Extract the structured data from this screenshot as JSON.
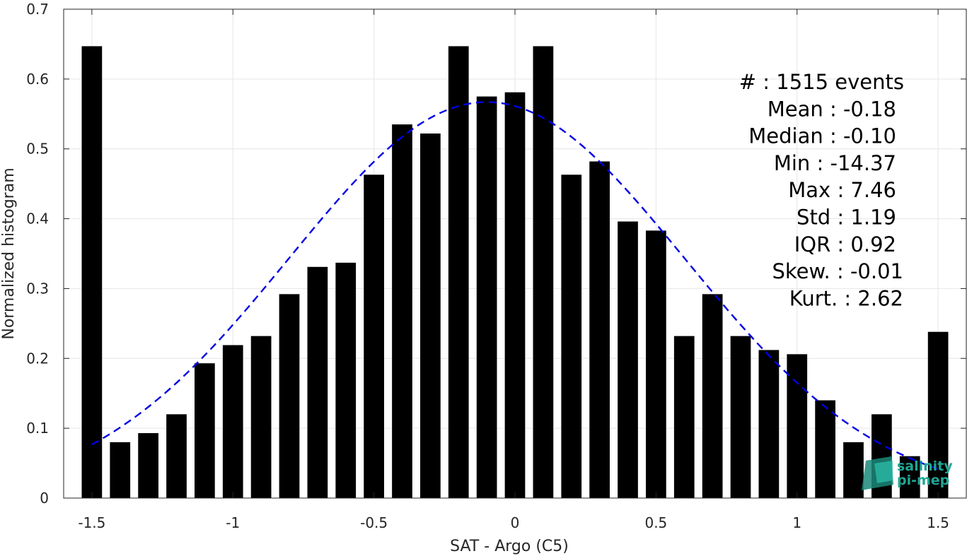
{
  "chart_data": {
    "type": "bar",
    "xlabel": "SAT - Argo (C5)",
    "ylabel": "Normalized histogram",
    "xlim": [
      -1.6,
      1.6
    ],
    "ylim": [
      0,
      0.7
    ],
    "xticks": [
      -1.5,
      -1,
      -0.5,
      0,
      0.5,
      1,
      1.5
    ],
    "xtick_labels": [
      "-1.5",
      "-1",
      "-0.5",
      "0",
      "0.5",
      "1",
      "1.5"
    ],
    "yticks": [
      0,
      0.1,
      0.2,
      0.3,
      0.4,
      0.5,
      0.6,
      0.7
    ],
    "ytick_labels": [
      "0",
      "0.1",
      "0.2",
      "0.3",
      "0.4",
      "0.5",
      "0.6",
      "0.7"
    ],
    "grid": true,
    "bar_color": "#000000",
    "bin_width": 0.1,
    "x": [
      -1.5,
      -1.4,
      -1.3,
      -1.2,
      -1.1,
      -1.0,
      -0.9,
      -0.8,
      -0.7,
      -0.6,
      -0.5,
      -0.4,
      -0.3,
      -0.2,
      -0.1,
      0.0,
      0.1,
      0.2,
      0.3,
      0.4,
      0.5,
      0.6,
      0.7,
      0.8,
      0.9,
      1.0,
      1.1,
      1.2,
      1.3,
      1.4,
      1.5
    ],
    "values": [
      0.647,
      0.08,
      0.093,
      0.12,
      0.193,
      0.219,
      0.232,
      0.292,
      0.331,
      0.337,
      0.463,
      0.535,
      0.522,
      0.647,
      0.575,
      0.581,
      0.647,
      0.463,
      0.482,
      0.396,
      0.383,
      0.232,
      0.292,
      0.232,
      0.212,
      0.206,
      0.14,
      0.08,
      0.12,
      0.06,
      0.238
    ],
    "fit": {
      "name": "",
      "type": "normal",
      "style": "dashed",
      "color": "#0000e6",
      "mean": -0.1,
      "std": 0.7,
      "peak": 0.567,
      "x_range": [
        -1.5,
        1.5
      ]
    },
    "stats": [
      "#  : 1515 events",
      "Mean : -0.18",
      "Median : -0.10",
      "Min : -14.37",
      "Max : 7.46",
      "Std : 1.19",
      "IQR : 0.92",
      "Skew. : -0.01",
      "Kurt. : 2.62"
    ]
  },
  "logo": {
    "line1": "salinity",
    "line2": "pi-mep",
    "color": "#1fa593"
  }
}
